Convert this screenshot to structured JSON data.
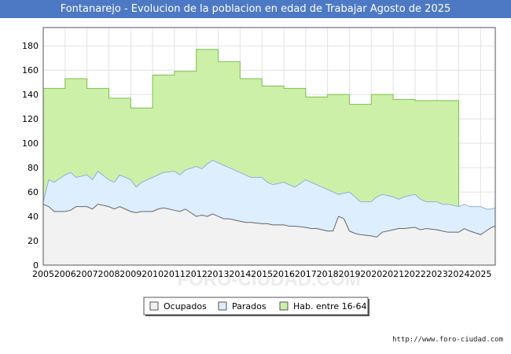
{
  "chart_data": {
    "type": "area",
    "title": "Fontanarejo - Evolucion de la poblacion en edad de Trabajar Agosto de 2025",
    "xlabel": "",
    "ylabel": "",
    "xlim": [
      2005,
      2025.67
    ],
    "ylim": [
      0,
      195
    ],
    "yticks": [
      0,
      20,
      40,
      60,
      80,
      100,
      120,
      140,
      160,
      180
    ],
    "xticks": [
      "2005",
      "2006",
      "2007",
      "2008",
      "2009",
      "2010",
      "2011",
      "2012",
      "2013",
      "2014",
      "2015",
      "2016",
      "2017",
      "2018",
      "2019",
      "2020",
      "2021",
      "2022",
      "2023",
      "2024",
      "2025"
    ],
    "grid": true,
    "legend_position": "bottom-center",
    "series": [
      {
        "name": "Hab. entre 16-64",
        "color": "#ccf0a8",
        "points": [
          [
            2005.0,
            145
          ],
          [
            2006.0,
            145
          ],
          [
            2006.0,
            153
          ],
          [
            2007.0,
            153
          ],
          [
            2007.0,
            145
          ],
          [
            2008.0,
            145
          ],
          [
            2008.0,
            137
          ],
          [
            2009.0,
            137
          ],
          [
            2009.0,
            129
          ],
          [
            2010.0,
            129
          ],
          [
            2010.0,
            156
          ],
          [
            2011.0,
            156
          ],
          [
            2011.0,
            159
          ],
          [
            2012.0,
            159
          ],
          [
            2012.0,
            177
          ],
          [
            2013.0,
            177
          ],
          [
            2013.0,
            167
          ],
          [
            2014.0,
            167
          ],
          [
            2014.0,
            153
          ],
          [
            2015.0,
            153
          ],
          [
            2015.0,
            147
          ],
          [
            2016.0,
            147
          ],
          [
            2016.0,
            145
          ],
          [
            2017.0,
            145
          ],
          [
            2017.0,
            138
          ],
          [
            2018.0,
            138
          ],
          [
            2018.0,
            140
          ],
          [
            2019.0,
            140
          ],
          [
            2019.0,
            132
          ],
          [
            2020.0,
            132
          ],
          [
            2020.0,
            140
          ],
          [
            2021.0,
            140
          ],
          [
            2021.0,
            136
          ],
          [
            2022.0,
            136
          ],
          [
            2022.0,
            135
          ],
          [
            2023.0,
            135
          ],
          [
            2023.0,
            135
          ],
          [
            2024.0,
            135
          ],
          [
            2024.0,
            48
          ]
        ]
      },
      {
        "name": "Parados",
        "color": "#ddeeff",
        "points": [
          [
            2005.0,
            52
          ],
          [
            2005.25,
            70
          ],
          [
            2005.5,
            68
          ],
          [
            2006.0,
            74
          ],
          [
            2006.25,
            76
          ],
          [
            2006.5,
            72
          ],
          [
            2007.0,
            74
          ],
          [
            2007.25,
            70
          ],
          [
            2007.5,
            77
          ],
          [
            2008.0,
            70
          ],
          [
            2008.25,
            68
          ],
          [
            2008.5,
            74
          ],
          [
            2009.0,
            70
          ],
          [
            2009.25,
            64
          ],
          [
            2009.5,
            68
          ],
          [
            2010.0,
            72
          ],
          [
            2010.25,
            74
          ],
          [
            2010.5,
            76
          ],
          [
            2011.0,
            77
          ],
          [
            2011.25,
            74
          ],
          [
            2011.5,
            78
          ],
          [
            2012.0,
            81
          ],
          [
            2012.25,
            79
          ],
          [
            2012.5,
            83
          ],
          [
            2012.75,
            86
          ],
          [
            2013.0,
            84
          ],
          [
            2013.25,
            82
          ],
          [
            2013.5,
            80
          ],
          [
            2014.0,
            76
          ],
          [
            2014.25,
            74
          ],
          [
            2014.5,
            72
          ],
          [
            2015.0,
            72
          ],
          [
            2015.25,
            68
          ],
          [
            2015.5,
            66
          ],
          [
            2016.0,
            68
          ],
          [
            2016.25,
            66
          ],
          [
            2016.5,
            64
          ],
          [
            2017.0,
            70
          ],
          [
            2017.25,
            68
          ],
          [
            2017.5,
            66
          ],
          [
            2018.0,
            62
          ],
          [
            2018.25,
            60
          ],
          [
            2018.5,
            58
          ],
          [
            2019.0,
            60
          ],
          [
            2019.25,
            56
          ],
          [
            2019.5,
            52
          ],
          [
            2020.0,
            52
          ],
          [
            2020.25,
            56
          ],
          [
            2020.5,
            58
          ],
          [
            2021.0,
            56
          ],
          [
            2021.25,
            54
          ],
          [
            2021.5,
            56
          ],
          [
            2022.0,
            58
          ],
          [
            2022.25,
            54
          ],
          [
            2022.5,
            52
          ],
          [
            2023.0,
            52
          ],
          [
            2023.25,
            50
          ],
          [
            2023.5,
            50
          ],
          [
            2024.0,
            48
          ],
          [
            2024.25,
            50
          ],
          [
            2024.5,
            48
          ],
          [
            2025.0,
            48
          ],
          [
            2025.25,
            46
          ],
          [
            2025.5,
            46
          ],
          [
            2025.67,
            47
          ]
        ]
      },
      {
        "name": "Ocupados",
        "color": "#f2f2f2",
        "points": [
          [
            2005.0,
            50
          ],
          [
            2005.25,
            48
          ],
          [
            2005.5,
            44
          ],
          [
            2006.0,
            44
          ],
          [
            2006.25,
            45
          ],
          [
            2006.5,
            48
          ],
          [
            2007.0,
            48
          ],
          [
            2007.25,
            46
          ],
          [
            2007.5,
            50
          ],
          [
            2008.0,
            48
          ],
          [
            2008.25,
            46
          ],
          [
            2008.5,
            48
          ],
          [
            2009.0,
            44
          ],
          [
            2009.25,
            43
          ],
          [
            2009.5,
            44
          ],
          [
            2010.0,
            44
          ],
          [
            2010.25,
            46
          ],
          [
            2010.5,
            47
          ],
          [
            2011.0,
            45
          ],
          [
            2011.25,
            44
          ],
          [
            2011.5,
            46
          ],
          [
            2012.0,
            40
          ],
          [
            2012.25,
            41
          ],
          [
            2012.5,
            40
          ],
          [
            2012.75,
            42
          ],
          [
            2013.0,
            40
          ],
          [
            2013.25,
            38
          ],
          [
            2013.5,
            38
          ],
          [
            2014.0,
            36
          ],
          [
            2014.25,
            35
          ],
          [
            2014.5,
            35
          ],
          [
            2015.0,
            34
          ],
          [
            2015.25,
            34
          ],
          [
            2015.5,
            33
          ],
          [
            2016.0,
            33
          ],
          [
            2016.25,
            32
          ],
          [
            2016.5,
            32
          ],
          [
            2017.0,
            31
          ],
          [
            2017.25,
            30
          ],
          [
            2017.5,
            30
          ],
          [
            2018.0,
            28
          ],
          [
            2018.25,
            28
          ],
          [
            2018.5,
            40
          ],
          [
            2018.75,
            38
          ],
          [
            2019.0,
            28
          ],
          [
            2019.25,
            26
          ],
          [
            2019.5,
            25
          ],
          [
            2020.0,
            24
          ],
          [
            2020.25,
            23
          ],
          [
            2020.5,
            27
          ],
          [
            2021.0,
            29
          ],
          [
            2021.25,
            30
          ],
          [
            2021.5,
            30
          ],
          [
            2022.0,
            31
          ],
          [
            2022.25,
            29
          ],
          [
            2022.5,
            30
          ],
          [
            2023.0,
            29
          ],
          [
            2023.25,
            28
          ],
          [
            2023.5,
            27
          ],
          [
            2024.0,
            27
          ],
          [
            2024.25,
            30
          ],
          [
            2024.5,
            28
          ],
          [
            2025.0,
            25
          ],
          [
            2025.25,
            28
          ],
          [
            2025.5,
            31
          ],
          [
            2025.67,
            32
          ]
        ]
      }
    ],
    "watermark": "FORO-CIUDAD.COM",
    "legend_items": [
      {
        "label": "Ocupados",
        "color": "#f2f2f2"
      },
      {
        "label": "Parados",
        "color": "#ddeeff"
      },
      {
        "label": "Hab. entre 16-64",
        "color": "#ccf0a8"
      }
    ]
  },
  "source_text": "http://www.foro-ciudad.com"
}
